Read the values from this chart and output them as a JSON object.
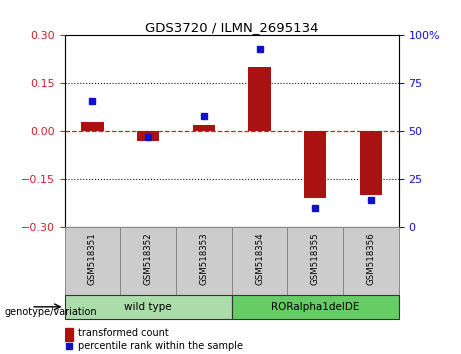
{
  "title": "GDS3720 / ILMN_2695134",
  "samples": [
    "GSM518351",
    "GSM518352",
    "GSM518353",
    "GSM518354",
    "GSM518355",
    "GSM518356"
  ],
  "bar_values": [
    0.03,
    -0.03,
    0.02,
    0.2,
    -0.21,
    -0.2
  ],
  "scatter_values": [
    66,
    47,
    58,
    93,
    10,
    14
  ],
  "ylim_left": [
    -0.3,
    0.3
  ],
  "ylim_right": [
    0,
    100
  ],
  "yticks_left": [
    -0.3,
    -0.15,
    0,
    0.15,
    0.3
  ],
  "yticks_right": [
    0,
    25,
    50,
    75,
    100
  ],
  "bar_color": "#aa1111",
  "scatter_color": "#1111cc",
  "hline_color": "#cc2222",
  "dotted_color": "#111111",
  "groups": [
    {
      "label": "wild type",
      "spans": [
        0,
        2
      ],
      "color": "#aaddaa"
    },
    {
      "label": "RORalpha1delDE",
      "spans": [
        3,
        5
      ],
      "color": "#66cc66"
    }
  ],
  "group_label": "genotype/variation",
  "legend_bar": "transformed count",
  "legend_scatter": "percentile rank within the sample",
  "left_axis_color": "#cc2222",
  "right_axis_color": "#1111cc",
  "bg_color": "#ffffff",
  "tick_bg_color": "#cccccc",
  "tick_border_color": "#888888"
}
